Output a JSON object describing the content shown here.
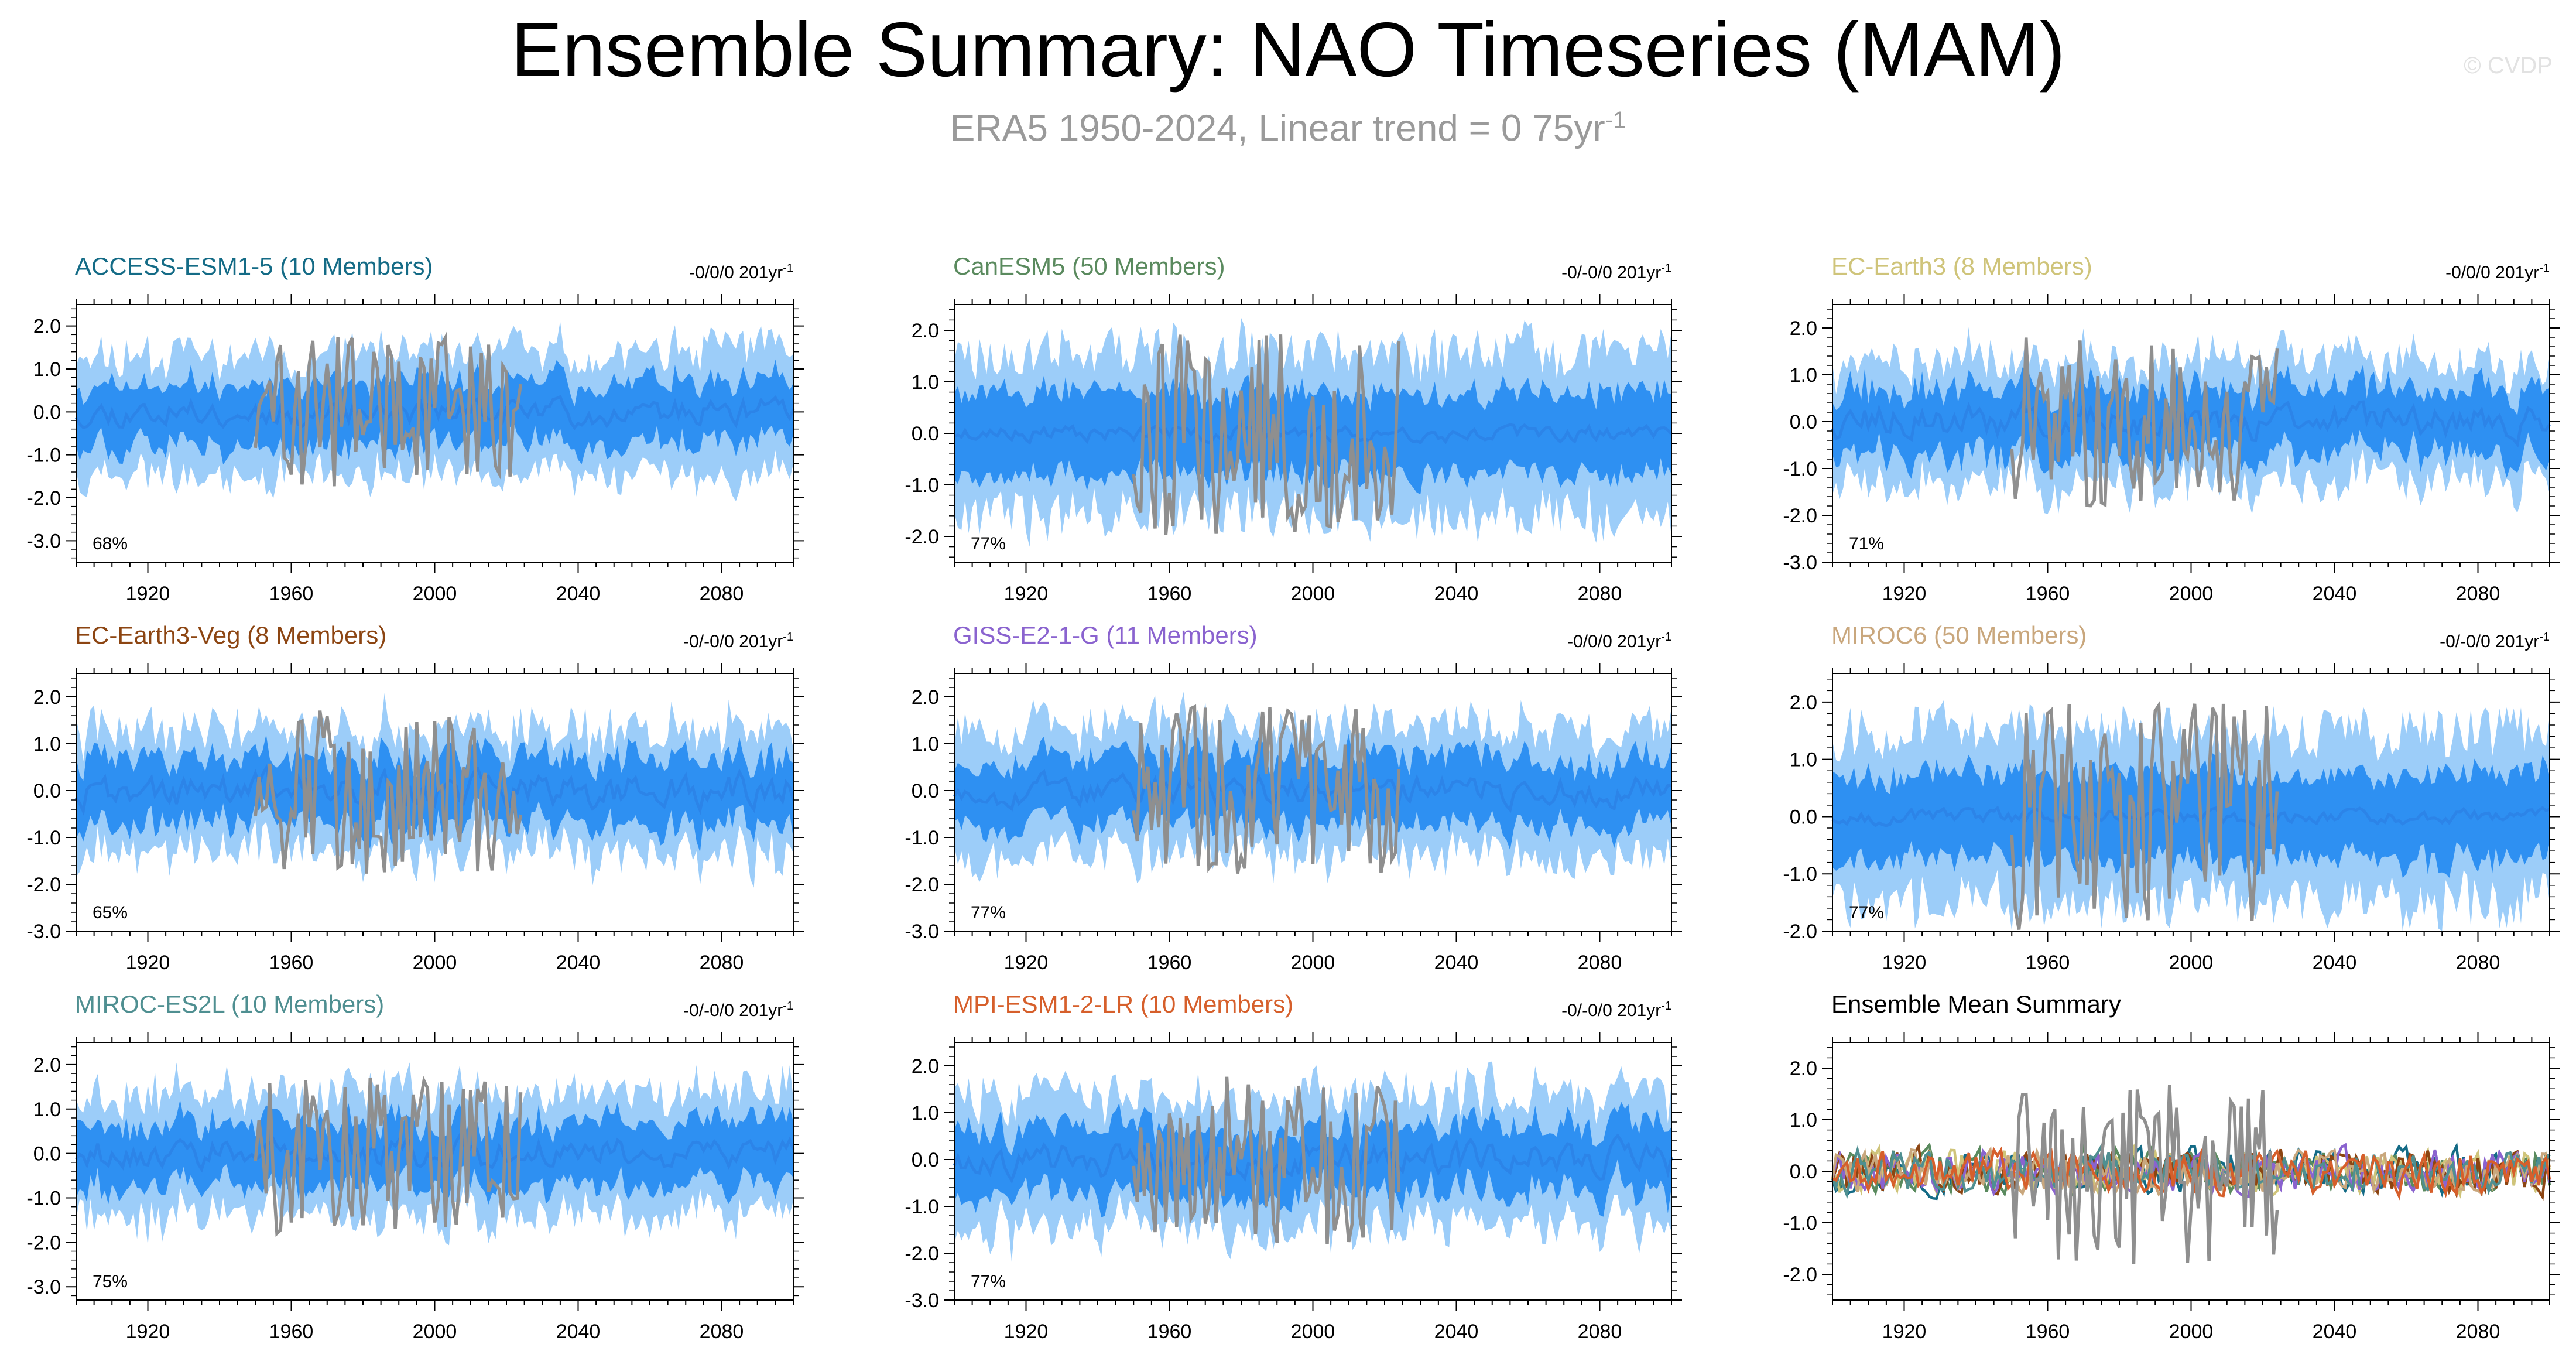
{
  "header": {
    "title": "Ensemble Summary: NAO Timeseries (MAM)",
    "subtitle": "ERA5 1950-2024, Linear trend = 0 75yr",
    "subtitle_superscript": "-1",
    "copyright": "© CVDP"
  },
  "colors": {
    "observed": "#8f8f8f",
    "ensemble_mean": "#2b83e6",
    "spread_inner": "#2e90f2",
    "spread_outer": "#9ccdf9"
  },
  "chart_data": [
    {
      "type": "line",
      "panel": "ACCESS-ESM1-5",
      "title": "ACCESS-ESM1-5 (10 Members)",
      "title_color": "#146b86",
      "trend_label": "-0/0/0 201yr",
      "trend_superscript": "-1",
      "percent_label": "68%",
      "ylim": [
        -3.5,
        2.5
      ],
      "yticks": [
        -3.0,
        -2.0,
        -1.0,
        0.0,
        1.0,
        2.0
      ],
      "yticklabels": [
        "-3.0",
        "-2.0",
        "-1.0",
        "0.0",
        "1.0",
        "2.0"
      ],
      "xlim": [
        1900,
        2100
      ],
      "xticks": [
        1920,
        1960,
        2000,
        2040,
        2080
      ],
      "xticklabels": [
        "1920",
        "1960",
        "2000",
        "2040",
        "2080"
      ],
      "outer_halfwidth": 1.4,
      "inner_halfwidth": 0.7,
      "mean_amplitude": 0.25,
      "obs_amplitude": 1.0,
      "seed": 11
    },
    {
      "type": "line",
      "panel": "CanESM5",
      "title": "CanESM5 (50 Members)",
      "title_color": "#5a8a5e",
      "trend_label": "-0/-0/0 201yr",
      "trend_superscript": "-1",
      "percent_label": "77%",
      "ylim": [
        -2.5,
        2.5
      ],
      "yticks": [
        -2.0,
        -1.0,
        0.0,
        1.0,
        2.0
      ],
      "yticklabels": [
        "-2.0",
        "-1.0",
        "0.0",
        "1.0",
        "2.0"
      ],
      "xlim": [
        1900,
        2100
      ],
      "xticks": [
        1920,
        1960,
        2000,
        2040,
        2080
      ],
      "xticklabels": [
        "1920",
        "1960",
        "2000",
        "2040",
        "2080"
      ],
      "outer_halfwidth": 1.6,
      "inner_halfwidth": 0.8,
      "mean_amplitude": 0.12,
      "obs_amplitude": 1.1,
      "seed": 23
    },
    {
      "type": "line",
      "panel": "EC-Earth3",
      "title": "EC-Earth3 (8 Members)",
      "title_color": "#cfc47a",
      "trend_label": "-0/0/0 201yr",
      "trend_superscript": "-1",
      "percent_label": "71%",
      "ylim": [
        -3.0,
        2.5
      ],
      "yticks": [
        -3.0,
        -2.0,
        -1.0,
        0.0,
        1.0,
        2.0
      ],
      "yticklabels": [
        "-3.0",
        "-2.0",
        "-1.0",
        "0.0",
        "1.0",
        "2.0"
      ],
      "xlim": [
        1900,
        2100
      ],
      "xticks": [
        1920,
        1960,
        2000,
        2040,
        2080
      ],
      "xticklabels": [
        "1920",
        "1960",
        "2000",
        "2040",
        "2080"
      ],
      "outer_halfwidth": 1.3,
      "inner_halfwidth": 0.7,
      "mean_amplitude": 0.3,
      "obs_amplitude": 1.0,
      "seed": 37
    },
    {
      "type": "line",
      "panel": "EC-Earth3-Veg",
      "title": "EC-Earth3-Veg (8 Members)",
      "title_color": "#8c4512",
      "trend_label": "-0/-0/0 201yr",
      "trend_superscript": "-1",
      "percent_label": "65%",
      "ylim": [
        -3.0,
        2.5
      ],
      "yticks": [
        -3.0,
        -2.0,
        -1.0,
        0.0,
        1.0,
        2.0
      ],
      "yticklabels": [
        "-3.0",
        "-2.0",
        "-1.0",
        "0.0",
        "1.0",
        "2.0"
      ],
      "xlim": [
        1900,
        2100
      ],
      "xticks": [
        1920,
        1960,
        2000,
        2040,
        2080
      ],
      "xticklabels": [
        "1920",
        "1960",
        "2000",
        "2040",
        "2080"
      ],
      "outer_halfwidth": 1.3,
      "inner_halfwidth": 0.7,
      "mean_amplitude": 0.3,
      "obs_amplitude": 1.0,
      "seed": 41
    },
    {
      "type": "line",
      "panel": "GISS-E2-1-G",
      "title": "GISS-E2-1-G (11 Members)",
      "title_color": "#8a63cf",
      "trend_label": "-0/0/0 201yr",
      "trend_superscript": "-1",
      "percent_label": "77%",
      "ylim": [
        -3.0,
        2.5
      ],
      "yticks": [
        -3.0,
        -2.0,
        -1.0,
        0.0,
        1.0,
        2.0
      ],
      "yticklabels": [
        "-3.0",
        "-2.0",
        "-1.0",
        "0.0",
        "1.0",
        "2.0"
      ],
      "xlim": [
        1900,
        2100
      ],
      "xticks": [
        1920,
        1960,
        2000,
        2040,
        2080
      ],
      "xticklabels": [
        "1920",
        "1960",
        "2000",
        "2040",
        "2080"
      ],
      "outer_halfwidth": 1.4,
      "inner_halfwidth": 0.7,
      "mean_amplitude": 0.25,
      "obs_amplitude": 1.0,
      "seed": 53
    },
    {
      "type": "line",
      "panel": "MIROC6",
      "title": "MIROC6 (50 Members)",
      "title_color": "#c9a77d",
      "trend_label": "-0/-0/0 201yr",
      "trend_superscript": "-1",
      "percent_label": "77%",
      "ylim": [
        -2.0,
        2.5
      ],
      "yticks": [
        -2.0,
        -1.0,
        0.0,
        1.0,
        2.0
      ],
      "yticklabels": [
        "-2.0",
        "-1.0",
        "0.0",
        "1.0",
        "2.0"
      ],
      "xlim": [
        1900,
        2100
      ],
      "xticks": [
        1920,
        1960,
        2000,
        2040,
        2080
      ],
      "xticklabels": [
        "1920",
        "1960",
        "2000",
        "2040",
        "2080"
      ],
      "outer_halfwidth": 1.5,
      "inner_halfwidth": 0.75,
      "mean_amplitude": 0.1,
      "obs_amplitude": 1.1,
      "seed": 67
    },
    {
      "type": "line",
      "panel": "MIROC-ES2L",
      "title": "MIROC-ES2L (10 Members)",
      "title_color": "#4f8f91",
      "trend_label": "-0/-0/0 201yr",
      "trend_superscript": "-1",
      "percent_label": "75%",
      "ylim": [
        -3.3,
        2.5
      ],
      "yticks": [
        -3.0,
        -2.0,
        -1.0,
        0.0,
        1.0,
        2.0
      ],
      "yticklabels": [
        "-3.0",
        "-2.0",
        "-1.0",
        "0.0",
        "1.0",
        "2.0"
      ],
      "xlim": [
        1900,
        2100
      ],
      "xticks": [
        1920,
        1960,
        2000,
        2040,
        2080
      ],
      "xticklabels": [
        "1920",
        "1960",
        "2000",
        "2040",
        "2080"
      ],
      "outer_halfwidth": 1.4,
      "inner_halfwidth": 0.7,
      "mean_amplitude": 0.28,
      "obs_amplitude": 1.0,
      "seed": 79
    },
    {
      "type": "line",
      "panel": "MPI-ESM1-2-LR",
      "title": "MPI-ESM1-2-LR (10 Members)",
      "title_color": "#d65f2b",
      "trend_label": "-0/-0/0 201yr",
      "trend_superscript": "-1",
      "percent_label": "77%",
      "ylim": [
        -3.0,
        2.5
      ],
      "yticks": [
        -3.0,
        -2.0,
        -1.0,
        0.0,
        1.0,
        2.0
      ],
      "yticklabels": [
        "-3.0",
        "-2.0",
        "-1.0",
        "0.0",
        "1.0",
        "2.0"
      ],
      "xlim": [
        1900,
        2100
      ],
      "xticks": [
        1920,
        1960,
        2000,
        2040,
        2080
      ],
      "xticklabels": [
        "1920",
        "1960",
        "2000",
        "2040",
        "2080"
      ],
      "outer_halfwidth": 1.4,
      "inner_halfwidth": 0.7,
      "mean_amplitude": 0.28,
      "obs_amplitude": 1.0,
      "seed": 83
    },
    {
      "type": "line",
      "panel": "Ensemble Mean Summary",
      "title": "Ensemble Mean Summary",
      "title_color": "#000000",
      "ylim": [
        -2.5,
        2.5
      ],
      "yticks": [
        -2.0,
        -1.0,
        0.0,
        1.0,
        2.0
      ],
      "yticklabels": [
        "-2.0",
        "-1.0",
        "0.0",
        "1.0",
        "2.0"
      ],
      "xlim": [
        1900,
        2100
      ],
      "xticks": [
        1920,
        1960,
        2000,
        2040,
        2080
      ],
      "xticklabels": [
        "1920",
        "1960",
        "2000",
        "2040",
        "2080"
      ],
      "series_colors": [
        "#146b86",
        "#5a8a5e",
        "#cfc47a",
        "#8c4512",
        "#8a63cf",
        "#c9a77d",
        "#4f8f91",
        "#d65f2b"
      ],
      "mean_amplitude": 0.35,
      "obs_amplitude": 1.0,
      "seed": 97
    }
  ]
}
